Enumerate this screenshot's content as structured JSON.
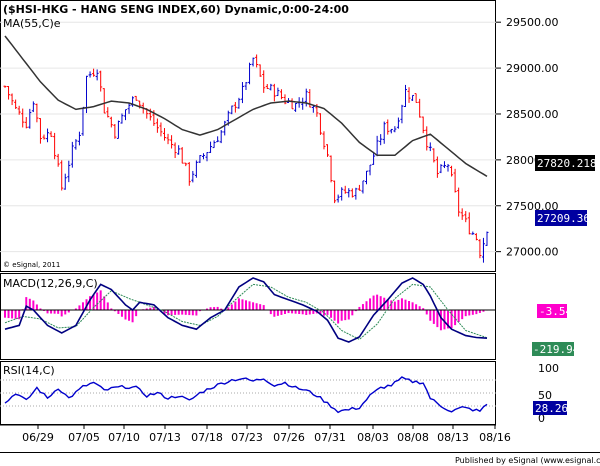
{
  "header": {
    "title": "($HSI-HKG - HANG SENG INDEX,60) Dynamic,0:00-24:00",
    "ma_label": "MA(55,C)e",
    "copyright": "© eSignal, 2011"
  },
  "price_axis_labels": [
    "29500.00",
    "29000.00",
    "28500.00",
    "28000.00",
    "27500.00",
    "27000.00"
  ],
  "date_labels": [
    "06/29",
    "07/05",
    "07/10",
    "07/13",
    "07/18",
    "07/23",
    "07/26",
    "07/31",
    "08/03",
    "08/08",
    "08/13",
    "08/16"
  ],
  "macd": {
    "label": "MACD(12,26,9,C)",
    "value1": "-3.54",
    "value2": "-219.94"
  },
  "rsi": {
    "label": "RSI(14,C)",
    "axis": [
      "100",
      "50",
      "0"
    ],
    "value": "28.26"
  },
  "footer": "Published by eSignal (www.esignal.com)",
  "colors": {
    "up": "#0000cc",
    "down": "#ff0000",
    "ma": "#333333",
    "macd": "#000080",
    "signal": "#2e8b57",
    "hist": "#ff00cc",
    "rsi": "#0000cc",
    "badge_ma": "#000000",
    "badge_price": "#0000a0",
    "badge_hist": "#ff00cc",
    "badge_macd": "#2e8b57"
  },
  "chart_data": [
    {
      "type": "candlestick",
      "title": "($HSI-HKG - HANG SENG INDEX,60) Dynamic,0:00-24:00",
      "ylim": [
        26800,
        29720
      ],
      "y_ticks": [
        29500,
        29000,
        28500,
        28000,
        27500,
        27000
      ],
      "x_ticks": [
        "06/29",
        "07/05",
        "07/10",
        "07/13",
        "07/18",
        "07/23",
        "07/26",
        "07/31",
        "08/03",
        "08/08",
        "08/13",
        "08/16"
      ],
      "price_path": [
        [
          0,
          28800
        ],
        [
          3,
          28550
        ],
        [
          6,
          28400
        ],
        [
          8,
          28650
        ],
        [
          10,
          28250
        ],
        [
          13,
          28300
        ],
        [
          16,
          27700
        ],
        [
          19,
          28100
        ],
        [
          21,
          28300
        ],
        [
          23,
          28900
        ],
        [
          26,
          29000
        ],
        [
          28,
          28550
        ],
        [
          31,
          28300
        ],
        [
          34,
          28550
        ],
        [
          37,
          28700
        ],
        [
          40,
          28500
        ],
        [
          43,
          28350
        ],
        [
          46,
          28200
        ],
        [
          49,
          28100
        ],
        [
          52,
          27800
        ],
        [
          55,
          28000
        ],
        [
          58,
          28150
        ],
        [
          61,
          28300
        ],
        [
          64,
          28550
        ],
        [
          67,
          28750
        ],
        [
          70,
          29100
        ],
        [
          73,
          28800
        ],
        [
          76,
          28750
        ],
        [
          79,
          28650
        ],
        [
          82,
          28600
        ],
        [
          85,
          28700
        ],
        [
          88,
          28500
        ],
        [
          91,
          28050
        ],
        [
          93,
          27600
        ],
        [
          96,
          27650
        ],
        [
          99,
          27650
        ],
        [
          102,
          27850
        ],
        [
          105,
          28150
        ],
        [
          107,
          28350
        ],
        [
          110,
          28350
        ],
        [
          113,
          28750
        ],
        [
          116,
          28650
        ],
        [
          119,
          28200
        ],
        [
          122,
          27850
        ],
        [
          125,
          27950
        ],
        [
          128,
          27450
        ],
        [
          131,
          27250
        ],
        [
          133,
          27150
        ],
        [
          134,
          27000
        ],
        [
          136,
          27210
        ]
      ],
      "series": [
        {
          "name": "MA(55,C)e",
          "values": [
            [
              0,
              29350
            ],
            [
              5,
              29100
            ],
            [
              10,
              28850
            ],
            [
              15,
              28650
            ],
            [
              20,
              28550
            ],
            [
              25,
              28580
            ],
            [
              30,
              28640
            ],
            [
              35,
              28620
            ],
            [
              40,
              28550
            ],
            [
              45,
              28450
            ],
            [
              50,
              28330
            ],
            [
              55,
              28270
            ],
            [
              60,
              28330
            ],
            [
              65,
              28440
            ],
            [
              70,
              28550
            ],
            [
              75,
              28620
            ],
            [
              80,
              28640
            ],
            [
              85,
              28620
            ],
            [
              90,
              28560
            ],
            [
              95,
              28400
            ],
            [
              100,
              28190
            ],
            [
              105,
              28050
            ],
            [
              110,
              28050
            ],
            [
              115,
              28210
            ],
            [
              120,
              28280
            ],
            [
              125,
              28120
            ],
            [
              130,
              27960
            ],
            [
              136,
              27820
            ]
          ],
          "last": 27820.2184
        },
        {
          "name": "Close",
          "last": 27209.36
        }
      ]
    },
    {
      "type": "line",
      "title": "MACD(12,26,9,C)",
      "series": [
        {
          "name": "MACD",
          "values": [
            [
              0,
              -150
            ],
            [
              4,
              -120
            ],
            [
              6,
              30
            ],
            [
              8,
              0
            ],
            [
              12,
              -120
            ],
            [
              16,
              -180
            ],
            [
              20,
              -120
            ],
            [
              24,
              80
            ],
            [
              27,
              200
            ],
            [
              30,
              160
            ],
            [
              34,
              40
            ],
            [
              36,
              0
            ],
            [
              38,
              60
            ],
            [
              42,
              40
            ],
            [
              46,
              -60
            ],
            [
              50,
              -120
            ],
            [
              54,
              -150
            ],
            [
              58,
              -60
            ],
            [
              62,
              0
            ],
            [
              66,
              180
            ],
            [
              70,
              250
            ],
            [
              73,
              220
            ],
            [
              76,
              120
            ],
            [
              80,
              80
            ],
            [
              84,
              40
            ],
            [
              88,
              -10
            ],
            [
              91,
              -80
            ],
            [
              94,
              -220
            ],
            [
              97,
              -250
            ],
            [
              100,
              -210
            ],
            [
              104,
              -40
            ],
            [
              108,
              80
            ],
            [
              112,
              210
            ],
            [
              115,
              250
            ],
            [
              118,
              200
            ],
            [
              120,
              110
            ],
            [
              123,
              -60
            ],
            [
              126,
              -150
            ],
            [
              130,
              -200
            ],
            [
              133,
              -215
            ],
            [
              136,
              -219.94
            ]
          ],
          "last": -219.94
        },
        {
          "name": "Signal",
          "values": [
            [
              0,
              -100
            ],
            [
              5,
              -50
            ],
            [
              10,
              -70
            ],
            [
              15,
              -140
            ],
            [
              20,
              -130
            ],
            [
              25,
              20
            ],
            [
              30,
              150
            ],
            [
              35,
              90
            ],
            [
              40,
              40
            ],
            [
              45,
              -10
            ],
            [
              50,
              -90
            ],
            [
              55,
              -120
            ],
            [
              60,
              -50
            ],
            [
              65,
              80
            ],
            [
              70,
              200
            ],
            [
              75,
              180
            ],
            [
              80,
              100
            ],
            [
              85,
              60
            ],
            [
              90,
              -20
            ],
            [
              95,
              -160
            ],
            [
              100,
              -230
            ],
            [
              105,
              -110
            ],
            [
              110,
              90
            ],
            [
              115,
              200
            ],
            [
              120,
              180
            ],
            [
              125,
              0
            ],
            [
              130,
              -160
            ],
            [
              136,
              -216.4
            ]
          ]
        }
      ],
      "histogram_last": -3.54
    },
    {
      "type": "line",
      "title": "RSI(14,C)",
      "ylim": [
        0,
        100
      ],
      "y_ticks": [
        100,
        50,
        0
      ],
      "series": [
        {
          "name": "RSI",
          "values": [
            [
              0,
              30
            ],
            [
              3,
              50
            ],
            [
              6,
              35
            ],
            [
              9,
              60
            ],
            [
              12,
              40
            ],
            [
              15,
              60
            ],
            [
              18,
              40
            ],
            [
              22,
              62
            ],
            [
              25,
              70
            ],
            [
              28,
              55
            ],
            [
              31,
              60
            ],
            [
              34,
              62
            ],
            [
              37,
              60
            ],
            [
              40,
              45
            ],
            [
              43,
              50
            ],
            [
              46,
              40
            ],
            [
              49,
              45
            ],
            [
              52,
              35
            ],
            [
              55,
              50
            ],
            [
              58,
              60
            ],
            [
              61,
              68
            ],
            [
              64,
              75
            ],
            [
              67,
              78
            ],
            [
              70,
              73
            ],
            [
              73,
              78
            ],
            [
              76,
              65
            ],
            [
              79,
              70
            ],
            [
              82,
              60
            ],
            [
              85,
              55
            ],
            [
              88,
              45
            ],
            [
              91,
              30
            ],
            [
              94,
              15
            ],
            [
              97,
              18
            ],
            [
              100,
              22
            ],
            [
              103,
              45
            ],
            [
              106,
              60
            ],
            [
              109,
              65
            ],
            [
              112,
              78
            ],
            [
              115,
              72
            ],
            [
              118,
              70
            ],
            [
              120,
              40
            ],
            [
              123,
              25
            ],
            [
              126,
              15
            ],
            [
              129,
              22
            ],
            [
              132,
              18
            ],
            [
              134,
              15
            ],
            [
              136,
              28.26
            ]
          ],
          "last": 28.26
        }
      ]
    }
  ]
}
